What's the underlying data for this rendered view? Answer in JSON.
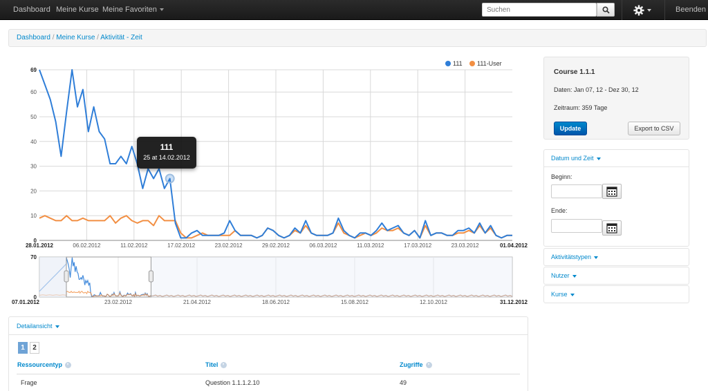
{
  "nav": {
    "items": [
      "Dashboard",
      "Meine Kurse",
      "Meine Favoriten"
    ],
    "search_placeholder": "Suchen",
    "logout": "Beenden"
  },
  "breadcrumb": [
    "Dashboard",
    "Meine Kurse",
    "Aktivität - Zeit"
  ],
  "chart_data": [
    {
      "type": "line",
      "ylim": [
        0,
        69
      ],
      "y_ticks": [
        "0",
        "10",
        "20",
        "30",
        "40",
        "50",
        "60",
        "69"
      ],
      "x_ticks": [
        "28.01.2012",
        "06.02.2012",
        "11.02.2012",
        "17.02.2012",
        "23.02.2012",
        "29.02.2012",
        "06.03.2012",
        "11.03.2012",
        "17.03.2012",
        "23.03.2012",
        "01.04.2012"
      ],
      "legend_position": "top-right",
      "grid": true,
      "series": [
        {
          "name": "111",
          "color": "#2f7ed8",
          "values": [
            69,
            63,
            57,
            48,
            34,
            52,
            69,
            54,
            61,
            44,
            54,
            44,
            41,
            31,
            31,
            34,
            31,
            38,
            31,
            21,
            29,
            25,
            29,
            21,
            25,
            7,
            1,
            1,
            3,
            4,
            2,
            2,
            2,
            2,
            3,
            8,
            4,
            2,
            2,
            2,
            1,
            2,
            5,
            4,
            2,
            1,
            2,
            5,
            3,
            8,
            3,
            2,
            2,
            2,
            3,
            9,
            4,
            2,
            1,
            3,
            3,
            2,
            4,
            7,
            4,
            5,
            6,
            3,
            2,
            4,
            1,
            8,
            2,
            3,
            3,
            2,
            2,
            4,
            4,
            5,
            3,
            7,
            3,
            6,
            2,
            1,
            2,
            2
          ]
        },
        {
          "name": "111-User",
          "color": "#f28f43",
          "values": [
            9,
            10,
            9,
            8,
            8,
            10,
            8,
            8,
            9,
            8,
            8,
            8,
            8,
            10,
            7,
            9,
            10,
            8,
            7,
            8,
            8,
            6,
            10,
            8,
            8,
            8,
            3,
            1,
            1,
            2,
            3,
            2,
            2,
            2,
            2,
            2,
            4,
            2,
            2,
            2,
            1,
            2,
            5,
            4,
            2,
            1,
            2,
            4,
            3,
            6,
            3,
            2,
            2,
            2,
            3,
            7,
            3,
            2,
            1,
            2,
            3,
            2,
            3,
            5,
            4,
            4,
            5,
            3,
            2,
            4,
            1,
            6,
            2,
            3,
            3,
            2,
            2,
            3,
            3,
            4,
            3,
            6,
            3,
            5,
            2,
            1,
            2,
            2
          ]
        }
      ],
      "tooltip": {
        "title": "111",
        "body": "25 at 14.02.2012",
        "index": 24
      }
    },
    {
      "type": "line",
      "ylim": [
        0,
        70
      ],
      "y_ticks": [
        "0",
        "70"
      ],
      "x_ticks": [
        "07.01.2012",
        "23.02.2012",
        "21.04.2012",
        "18.06.2012",
        "15.08.2012",
        "12.10.2012",
        "31.12.2012"
      ],
      "navigator_range": [
        "28.01.2012",
        "01.04.2012"
      ]
    }
  ],
  "course": {
    "title": "Course 1.1.1",
    "dates": "Daten: Jan 07, 12 - Dez 30, 12",
    "range": "Zeitraum: 359 Tage",
    "update_label": "Update",
    "export_label": "Export to CSV"
  },
  "filters": {
    "datetime_label": "Datum und Zeit",
    "start_label": "Beginn:",
    "end_label": "Ende:",
    "activity_label": "Aktivitätstypen",
    "users_label": "Nutzer",
    "courses_label": "Kurse"
  },
  "detail": {
    "title": "Detailansicht",
    "pages": [
      "1",
      "2"
    ],
    "columns": [
      "Ressourcentyp",
      "Titel",
      "Zugriffe"
    ],
    "rows": [
      [
        "Frage",
        "Question 1.1.1.2.10",
        "49"
      ]
    ]
  },
  "colors": {
    "accent": "#0088cc",
    "series1": "#2f7ed8",
    "series2": "#f28f43"
  }
}
